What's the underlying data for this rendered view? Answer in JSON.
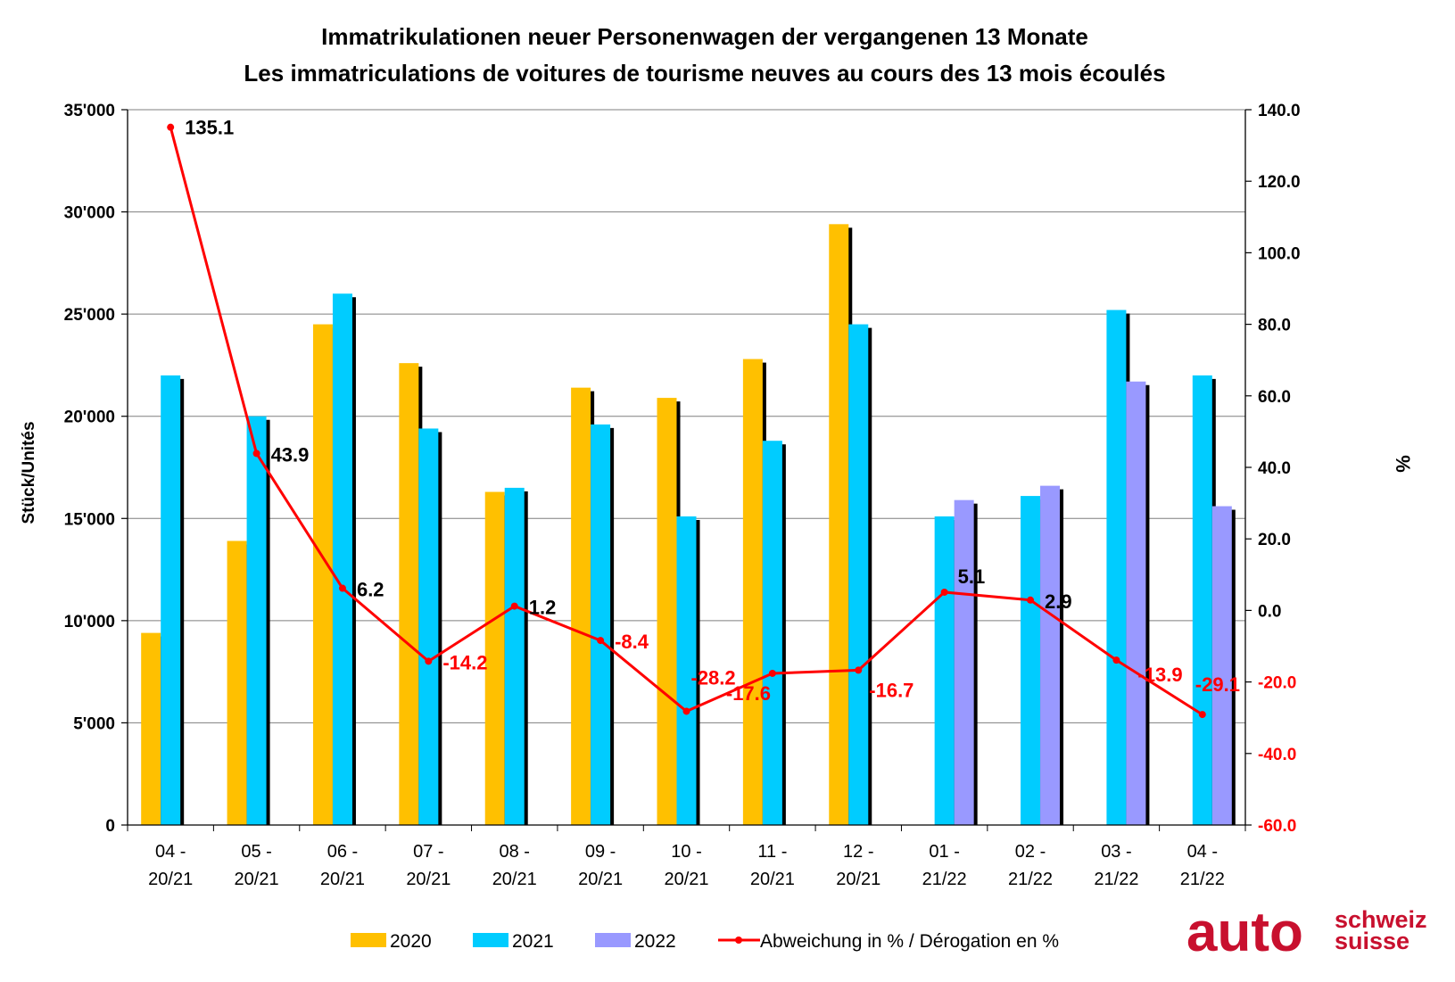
{
  "chart_data": {
    "type": "bar",
    "title": "Immatrikulationen neuer Personenwagen der vergangenen 13 Monate",
    "subtitle": "Les immatriculations de voitures de tourisme neuves au cours des 13 mois écoulés",
    "ylabel": "Stück/Unités",
    "y2label": "%",
    "ylim": [
      0,
      35000
    ],
    "y2lim": [
      -60,
      140
    ],
    "yticks": [
      "0",
      "5'000",
      "10'000",
      "15'000",
      "20'000",
      "25'000",
      "30'000",
      "35'000"
    ],
    "y2ticks": [
      "-60.0",
      "-40.0",
      "-20.0",
      "0.0",
      "20.0",
      "40.0",
      "60.0",
      "80.0",
      "100.0",
      "120.0",
      "140.0"
    ],
    "grid": true,
    "legend_position": "bottom",
    "categories": [
      [
        "04 -",
        "20/21"
      ],
      [
        "05 -",
        "20/21"
      ],
      [
        "06 -",
        "20/21"
      ],
      [
        "07 -",
        "20/21"
      ],
      [
        "08 -",
        "20/21"
      ],
      [
        "09 -",
        "20/21"
      ],
      [
        "10 -",
        "20/21"
      ],
      [
        "11 -",
        "20/21"
      ],
      [
        "12 -",
        "20/21"
      ],
      [
        "01 -",
        "21/22"
      ],
      [
        "02 -",
        "21/22"
      ],
      [
        "03 -",
        "21/22"
      ],
      [
        "04 -",
        "21/22"
      ]
    ],
    "series": [
      {
        "name": "2020",
        "color": "#FFC000",
        "values": [
          9400,
          13900,
          24500,
          22600,
          16300,
          21400,
          20900,
          22800,
          29400,
          null,
          null,
          null,
          null
        ]
      },
      {
        "name": "2021",
        "color": "#00CCFF",
        "values": [
          22000,
          20000,
          26000,
          19400,
          16500,
          19600,
          15100,
          18800,
          24500,
          15100,
          16100,
          25200,
          22000
        ]
      },
      {
        "name": "2022",
        "color": "#9999FF",
        "values": [
          null,
          null,
          null,
          null,
          null,
          null,
          null,
          null,
          null,
          15900,
          16600,
          21700,
          15600
        ]
      }
    ],
    "line": {
      "name": "Abweichung in % / Dérogation en %",
      "color": "#FF0000",
      "values": [
        135.1,
        43.9,
        6.2,
        -14.2,
        1.2,
        -8.4,
        -28.2,
        -17.6,
        -16.7,
        5.1,
        2.9,
        -13.9,
        -29.1
      ],
      "labels": [
        "135.1",
        "43.9",
        "6.2",
        "-14.2",
        "1.2",
        "-8.4",
        "-28.2",
        "-17.6",
        "-16.7",
        "5.1",
        "2.9",
        "-13.9",
        "-29.1"
      ]
    }
  },
  "logo": {
    "main": "auto",
    "top": "schweiz",
    "bottom": "suisse",
    "color": "#C8102E"
  }
}
